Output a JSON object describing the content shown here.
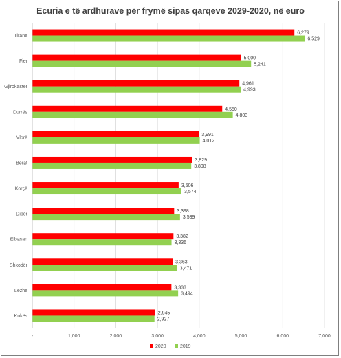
{
  "chart_data": {
    "type": "bar",
    "orientation": "horizontal",
    "title": "Ecuria e të ardhurave për frymë sipas qarqeve 2029-2020, në euro",
    "categories": [
      "Tiranë",
      "Fier",
      "Gjirokastër",
      "Durrës",
      "Vlorë",
      "Berat",
      "Korçë",
      "Dibër",
      "Elbasan",
      "Shkodër",
      "Lezhë",
      "Kukës"
    ],
    "series": [
      {
        "name": "2020",
        "color": "#ff0000",
        "values": [
          6279,
          5000,
          4961,
          4550,
          3991,
          3829,
          3506,
          3398,
          3382,
          3363,
          3333,
          2945
        ],
        "labels": [
          "6,279",
          "5,000",
          "4,961",
          "4,550",
          "3,991",
          "3,829",
          "3,506",
          "3,398",
          "3,382",
          "3,363",
          "3,333",
          "2,945"
        ]
      },
      {
        "name": "2019",
        "color": "#92d050",
        "values": [
          6529,
          5241,
          4993,
          4803,
          4012,
          3808,
          3574,
          3539,
          3336,
          3471,
          3494,
          2927
        ],
        "labels": [
          "6,529",
          "5,241",
          "4,993",
          "4,803",
          "4,012",
          "3,808",
          "3,574",
          "3,539",
          "3,336",
          "3,471",
          "3,494",
          "2,927"
        ]
      }
    ],
    "xlim": [
      0,
      7000
    ],
    "xticks": [
      0,
      1000,
      2000,
      3000,
      4000,
      5000,
      6000,
      7000
    ],
    "xtick_labels": [
      "-",
      "1,000",
      "2,000",
      "3,000",
      "4,000",
      "5,000",
      "6,000",
      "7,000"
    ],
    "grid": true,
    "legend": "bottom"
  }
}
